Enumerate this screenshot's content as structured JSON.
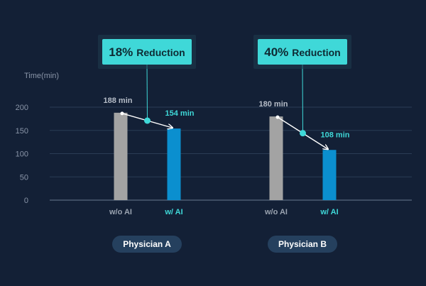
{
  "colors": {
    "background": "#132036",
    "baseline_bar": "#a3a3a3",
    "ai_bar": "#0b8fcf",
    "accent": "#3fd8d8",
    "grid": "#2b3c55",
    "pill": "#25405e"
  },
  "chart_data": {
    "type": "bar",
    "ylabel": "Time(min)",
    "ylim": [
      0,
      200
    ],
    "yticks": [
      0,
      50,
      100,
      150,
      200
    ],
    "grid": true,
    "groups": [
      {
        "name": "Physician A",
        "callout_pct": "18%",
        "callout_word": "Reduction",
        "bars": [
          {
            "label": "w/o AI",
            "value": 188,
            "value_label": "188 min",
            "kind": "baseline"
          },
          {
            "label": "w/ AI",
            "value": 154,
            "value_label": "154 min",
            "kind": "ai"
          }
        ]
      },
      {
        "name": "Physician B",
        "callout_pct": "40%",
        "callout_word": "Reduction",
        "bars": [
          {
            "label": "w/o AI",
            "value": 180,
            "value_label": "180 min",
            "kind": "baseline"
          },
          {
            "label": "w/ AI",
            "value": 108,
            "value_label": "108 min",
            "kind": "ai"
          }
        ]
      }
    ]
  }
}
